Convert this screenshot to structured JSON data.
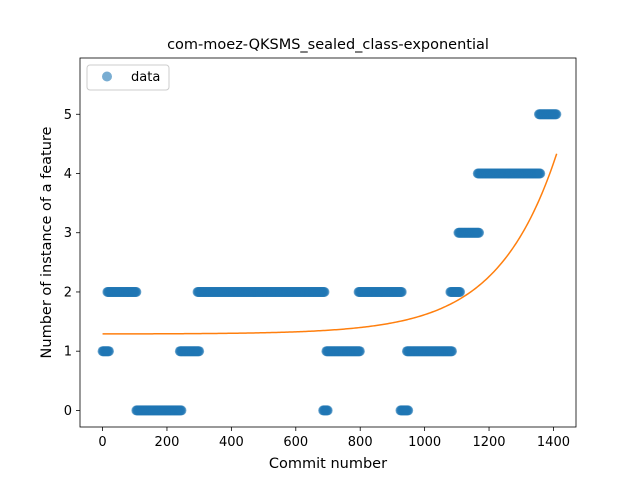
{
  "chart_data": {
    "type": "scatter",
    "title": "com-moez-QKSMS_sealed_class-exponential",
    "xlabel": "Commit number",
    "ylabel": "Number of instance of a feature",
    "xlim": [
      -70,
      1470
    ],
    "ylim": [
      -0.28,
      5.95
    ],
    "xticks": [
      0,
      200,
      400,
      600,
      800,
      1000,
      1200,
      1400
    ],
    "yticks": [
      0,
      1,
      2,
      3,
      4,
      5
    ],
    "legend": {
      "position": "upper-left",
      "entries": [
        "data"
      ]
    },
    "grid": false,
    "colors": {
      "data": "#1f77b4",
      "fit": "#ff7f0e"
    },
    "series": [
      {
        "name": "data",
        "kind": "scatter",
        "segments": [
          {
            "y": 1,
            "x_start": 0,
            "x_end": 20
          },
          {
            "y": 2,
            "x_start": 15,
            "x_end": 105
          },
          {
            "y": 0,
            "x_start": 105,
            "x_end": 245
          },
          {
            "y": 1,
            "x_start": 240,
            "x_end": 300
          },
          {
            "y": 2,
            "x_start": 295,
            "x_end": 690
          },
          {
            "y": 0,
            "x_start": 685,
            "x_end": 700
          },
          {
            "y": 1,
            "x_start": 695,
            "x_end": 800
          },
          {
            "y": 2,
            "x_start": 795,
            "x_end": 930
          },
          {
            "y": 0,
            "x_start": 925,
            "x_end": 950
          },
          {
            "y": 1,
            "x_start": 945,
            "x_end": 1085
          },
          {
            "y": 2,
            "x_start": 1080,
            "x_end": 1110
          },
          {
            "y": 3,
            "x_start": 1105,
            "x_end": 1170
          },
          {
            "y": 4,
            "x_start": 1165,
            "x_end": 1360
          },
          {
            "y": 5,
            "x_start": 1355,
            "x_end": 1410
          }
        ]
      },
      {
        "kind": "line",
        "model": {
          "a": 0.0014,
          "b": 0.00545,
          "c": 1.29
        },
        "x_range": [
          0,
          1410
        ]
      }
    ]
  }
}
